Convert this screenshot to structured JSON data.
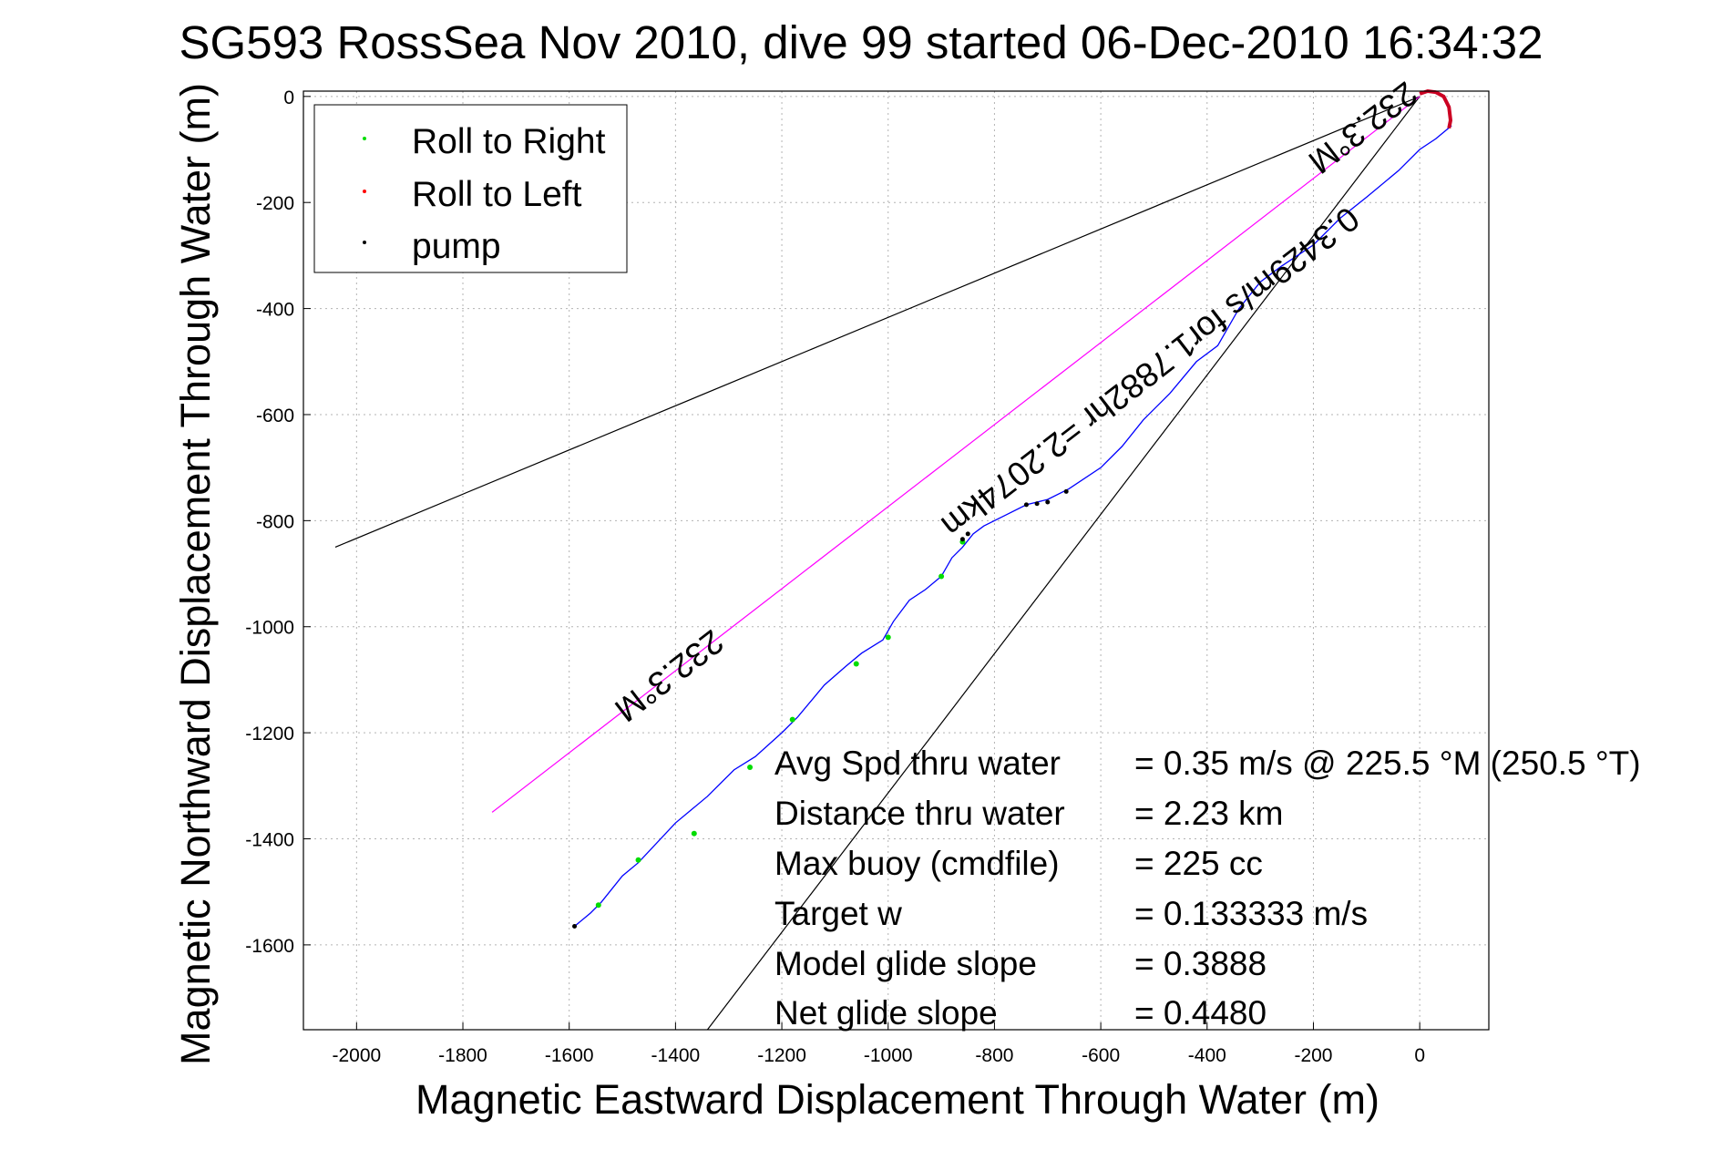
{
  "chart_data": {
    "type": "line",
    "title": "SG593 RossSea Nov 2010, dive 99 started 06-Dec-2010 16:34:32",
    "xlabel": "Magnetic Eastward Displacement Through Water (m)",
    "ylabel": "Magnetic Northward Displacement Through Water (m)",
    "xlim": [
      -2100,
      130
    ],
    "ylim": [
      -1760,
      10
    ],
    "xticks": [
      -2000,
      -1800,
      -1600,
      -1400,
      -1200,
      -1000,
      -800,
      -600,
      -400,
      -200,
      0
    ],
    "yticks": [
      0,
      -200,
      -400,
      -600,
      -800,
      -1000,
      -1200,
      -1400,
      -1600
    ],
    "grid": true,
    "legend": {
      "placement": "top-left",
      "entries": [
        {
          "label": "Roll to Right",
          "color": "#00dd00"
        },
        {
          "label": "Roll to Left",
          "color": "#ff0000"
        },
        {
          "label": "pump",
          "color": "#000000"
        }
      ]
    },
    "series": [
      {
        "color": "#0000ff",
        "x": [
          -1590,
          -1560,
          -1540,
          -1500,
          -1470,
          -1400,
          -1340,
          -1290,
          -1250,
          -1200,
          -1170,
          -1120,
          -1080,
          -1050,
          -1010,
          -990,
          -960,
          -930,
          -900,
          -880,
          -860,
          -840,
          -820,
          -780,
          -740,
          -700,
          -660,
          -600,
          -560,
          -520,
          -470,
          -420,
          -380,
          -340,
          -300,
          -260,
          -200,
          -150,
          -100,
          -40,
          0,
          30,
          60
        ],
        "y": [
          -1565,
          -1540,
          -1520,
          -1470,
          -1445,
          -1370,
          -1320,
          -1270,
          -1245,
          -1200,
          -1170,
          -1110,
          -1075,
          -1050,
          -1025,
          -990,
          -950,
          -930,
          -905,
          -870,
          -850,
          -825,
          -810,
          -790,
          -770,
          -760,
          -740,
          -700,
          -660,
          -610,
          -560,
          -500,
          -470,
          -400,
          -350,
          -320,
          -280,
          -230,
          -190,
          -140,
          -100,
          -80,
          -55
        ]
      }
    ],
    "roll_left_x": [
      0,
      15,
      30,
      45,
      55,
      58,
      55
    ],
    "roll_left_y": [
      5,
      10,
      8,
      0,
      -20,
      -45,
      -60
    ],
    "roll_right_points": [
      [
        -1545,
        -1525
      ],
      [
        -1470,
        -1440
      ],
      [
        -1365,
        -1390
      ],
      [
        -1260,
        -1265
      ],
      [
        -1180,
        -1175
      ],
      [
        -1060,
        -1070
      ],
      [
        -1000,
        -1020
      ],
      [
        -900,
        -905
      ],
      [
        -860,
        -840
      ]
    ],
    "pump_points": [
      [
        -1590,
        -1565
      ],
      [
        -860,
        -835
      ],
      [
        -850,
        -825
      ],
      [
        -740,
        -770
      ],
      [
        -720,
        -768
      ],
      [
        -700,
        -765
      ],
      [
        -665,
        -745
      ]
    ],
    "heading_line": {
      "color": "#ff00ff",
      "x": [
        -1745,
        0
      ],
      "y": [
        -1350,
        0
      ]
    },
    "bounds_lines": [
      {
        "color": "#000000",
        "x": [
          -2040,
          0
        ],
        "y": [
          -850,
          0
        ]
      },
      {
        "color": "#000000",
        "x": [
          -1340,
          0
        ],
        "y": [
          -1760,
          0
        ]
      }
    ],
    "annotations": {
      "heading_upper": "232.3°M",
      "speed_text": "0.3429m/s for1.7882hr =2.2074km",
      "heading_lower": "232.3°M"
    },
    "stats": [
      {
        "label": "Avg Spd thru water",
        "value": "=  0.35 m/s @ 225.5 °M (250.5 °T)"
      },
      {
        "label": "Distance thru water",
        "value": "=  2.23 km"
      },
      {
        "label": "Max buoy (cmdfile)",
        "value": "= 225 cc"
      },
      {
        "label": "Target w",
        "value": "= 0.133333 m/s"
      },
      {
        "label": "Model glide slope",
        "value": "= 0.3888"
      },
      {
        "label": "Net glide slope",
        "value": "= 0.4480"
      }
    ]
  }
}
